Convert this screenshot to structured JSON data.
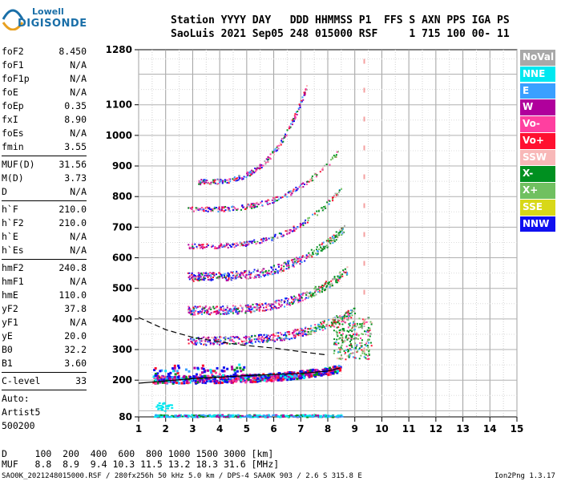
{
  "logo": {
    "line1": "Lowell",
    "line2": "DIGISONDE"
  },
  "header": {
    "line1": "Station YYYY DAY   DDD HHMMSS P1  FFS S AXN PPS IGA PS",
    "line2": "SaoLuis 2021 Sep05 248 015000 RSF     1 715 100 00- 11"
  },
  "params": {
    "g1": [
      [
        "foF2",
        "8.450"
      ],
      [
        "foF1",
        "N/A"
      ],
      [
        "foF1p",
        "N/A"
      ],
      [
        "foE",
        "N/A"
      ],
      [
        "foEp",
        "0.35"
      ],
      [
        "fxI",
        "8.90"
      ],
      [
        "foEs",
        "N/A"
      ],
      [
        "fmin",
        "3.55"
      ]
    ],
    "g2": [
      [
        "MUF(D)",
        "31.56"
      ],
      [
        "M(D)",
        "3.73"
      ],
      [
        "D",
        "N/A"
      ]
    ],
    "g3": [
      [
        "h`F",
        "210.0"
      ],
      [
        "h`F2",
        "210.0"
      ],
      [
        "h`E",
        "N/A"
      ],
      [
        "h`Es",
        "N/A"
      ]
    ],
    "g4": [
      [
        "hmF2",
        "240.8"
      ],
      [
        "hmF1",
        "N/A"
      ],
      [
        "hmE",
        "110.0"
      ],
      [
        "yF2",
        "37.8"
      ],
      [
        "yF1",
        "N/A"
      ],
      [
        "yE",
        "20.0"
      ],
      [
        "B0",
        "32.2"
      ],
      [
        "B1",
        "3.60"
      ]
    ],
    "g5": [
      [
        "C-level",
        "33"
      ]
    ],
    "autotext": [
      "Auto:",
      "Artist5",
      "500200"
    ]
  },
  "legend": [
    {
      "label": "NoVal",
      "color": "#a8a8a8"
    },
    {
      "label": "NNE",
      "color": "#00e8f0"
    },
    {
      "label": "E",
      "color": "#3aa0ff"
    },
    {
      "label": "W",
      "color": "#b0009c"
    },
    {
      "label": "Vo-",
      "color": "#ff3fa0"
    },
    {
      "label": "Vo+",
      "color": "#ff1030"
    },
    {
      "label": "SSW",
      "color": "#f8b8b8"
    },
    {
      "label": "X-",
      "color": "#009020"
    },
    {
      "label": "X+",
      "color": "#70c060"
    },
    {
      "label": "SSE",
      "color": "#d8d818"
    },
    {
      "label": "NNW",
      "color": "#1010f0"
    }
  ],
  "chart_data": {
    "type": "scatter",
    "xlim": [
      1,
      15
    ],
    "ylim": [
      80,
      1280
    ],
    "x_ticks": [
      1,
      2,
      3,
      4,
      5,
      6,
      7,
      8,
      9,
      10,
      11,
      12,
      13,
      14,
      15
    ],
    "y_ticks": [
      80,
      200,
      300,
      400,
      500,
      600,
      700,
      800,
      900,
      1000,
      1100,
      1280
    ],
    "grid": true,
    "hops": [
      {
        "name": "h1",
        "x_start": 1.5,
        "x_end": 8.45,
        "h0": 205,
        "h_end": 240
      },
      {
        "name": "h2",
        "x_start": 2.8,
        "x_end": 9.0,
        "h0": 330,
        "h_end": 430
      },
      {
        "name": "h3",
        "x_start": 2.8,
        "x_end": 8.7,
        "h0": 430,
        "h_end": 560
      },
      {
        "name": "h4",
        "x_start": 2.8,
        "x_end": 8.6,
        "h0": 540,
        "h_end": 700
      },
      {
        "name": "h5",
        "x_start": 2.8,
        "x_end": 8.5,
        "h0": 640,
        "h_end": 830
      },
      {
        "name": "h6",
        "x_start": 2.8,
        "x_end": 8.4,
        "h0": 760,
        "h_end": 950
      },
      {
        "name": "h7",
        "x_start": 3.2,
        "x_end": 7.2,
        "h0": 850,
        "h_end": 1160
      }
    ],
    "profile_solid": [
      [
        1,
        190
      ],
      [
        3,
        205
      ],
      [
        5,
        215
      ],
      [
        7,
        222
      ],
      [
        8,
        230
      ],
      [
        8.45,
        240
      ]
    ],
    "profile_dashed": [
      [
        1,
        405
      ],
      [
        2,
        365
      ],
      [
        3,
        340
      ],
      [
        4,
        325
      ],
      [
        5,
        313
      ],
      [
        6,
        305
      ],
      [
        7,
        293
      ],
      [
        8,
        282
      ]
    ],
    "es_band": {
      "x_start": 1.5,
      "x_end": 8.5,
      "h": 85
    }
  },
  "freq_axis": {
    "ticks": [
      "1",
      "2",
      "3",
      "4",
      "5",
      "6",
      "7",
      "8",
      "9",
      "10",
      "11",
      "12",
      "13",
      "14",
      "15"
    ]
  },
  "height_axis": {
    "ticks": [
      "80",
      "200",
      "300",
      "400",
      "500",
      "600",
      "700",
      "800",
      "900",
      "1000",
      "1100",
      "1280"
    ]
  },
  "footer": {
    "line1": "D     100  200  400  600  800 1000 1500 3000 [km]",
    "line2": "MUF   8.8  8.9  9.4 10.3 11.5 13.2 18.3 31.6 [MHz]",
    "line3": "SAO0K_2021248015000.RSF / 280fx256h 50 kHz 5.0 km / DPS-4 SAA0K 903 / 2.6 S 315.8 E",
    "version": "Ion2Png 1.3.17"
  }
}
